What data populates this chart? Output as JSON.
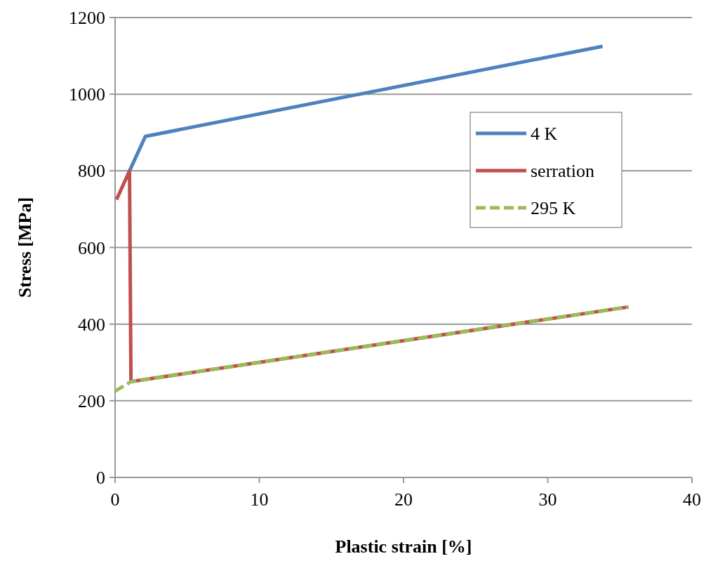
{
  "chart_data": {
    "type": "line",
    "xlabel": "Plastic strain [%]",
    "ylabel": "Stress [MPa]",
    "xlim": [
      0,
      40
    ],
    "xticks": [
      0,
      10,
      20,
      30,
      40
    ],
    "ylim": [
      0,
      1200
    ],
    "yticks": [
      0,
      200,
      400,
      600,
      800,
      1000,
      1200
    ],
    "grid": "y",
    "legend": "right",
    "marker": "none",
    "series": [
      {
        "name": "4 K",
        "color": "#4f81bd",
        "x": [
          1,
          2.1,
          33.8
        ],
        "values": [
          800,
          890,
          1125
        ]
      },
      {
        "name": "serration",
        "color": "#c0504d",
        "x": [
          0.1,
          1,
          1.1,
          35.6
        ],
        "values": [
          725,
          800,
          250,
          445
        ]
      },
      {
        "name": "295 K",
        "color": "#9bbb59",
        "line_style": "dashed",
        "x": [
          0,
          1.1,
          35.6
        ],
        "values": [
          225,
          250,
          445
        ]
      }
    ]
  }
}
